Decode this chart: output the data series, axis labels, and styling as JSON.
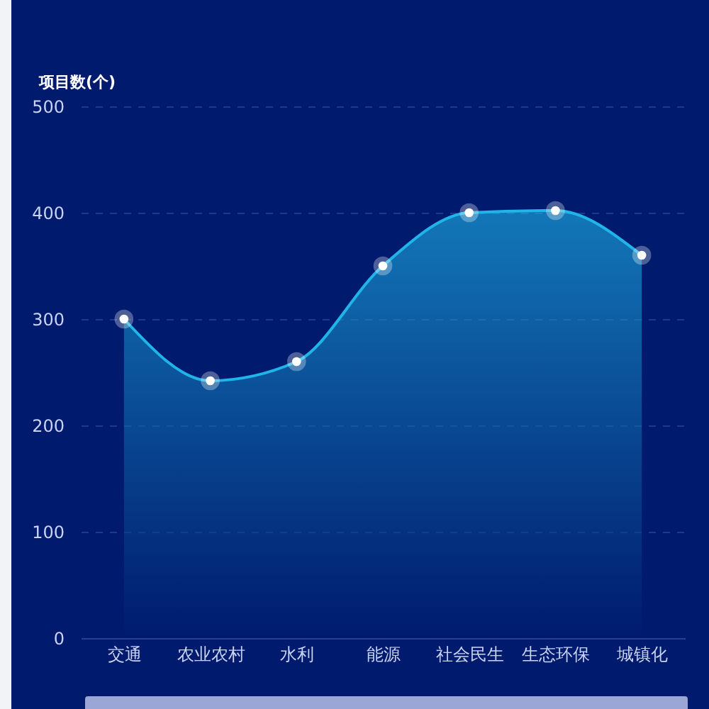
{
  "chart_data": {
    "type": "area",
    "ylabel": "项目数(个)",
    "categories": [
      "交通",
      "农业农村",
      "水利",
      "能源",
      "社会民生",
      "生态环保",
      "城镇化"
    ],
    "series": [
      {
        "color": "#1fb5e8",
        "values": [
          300,
          242,
          260,
          350,
          400,
          402,
          360
        ]
      }
    ],
    "ylim": [
      0,
      500
    ],
    "yticks": [
      0,
      100,
      200,
      300,
      400,
      500
    ],
    "grid": "y",
    "marker": "circle"
  }
}
